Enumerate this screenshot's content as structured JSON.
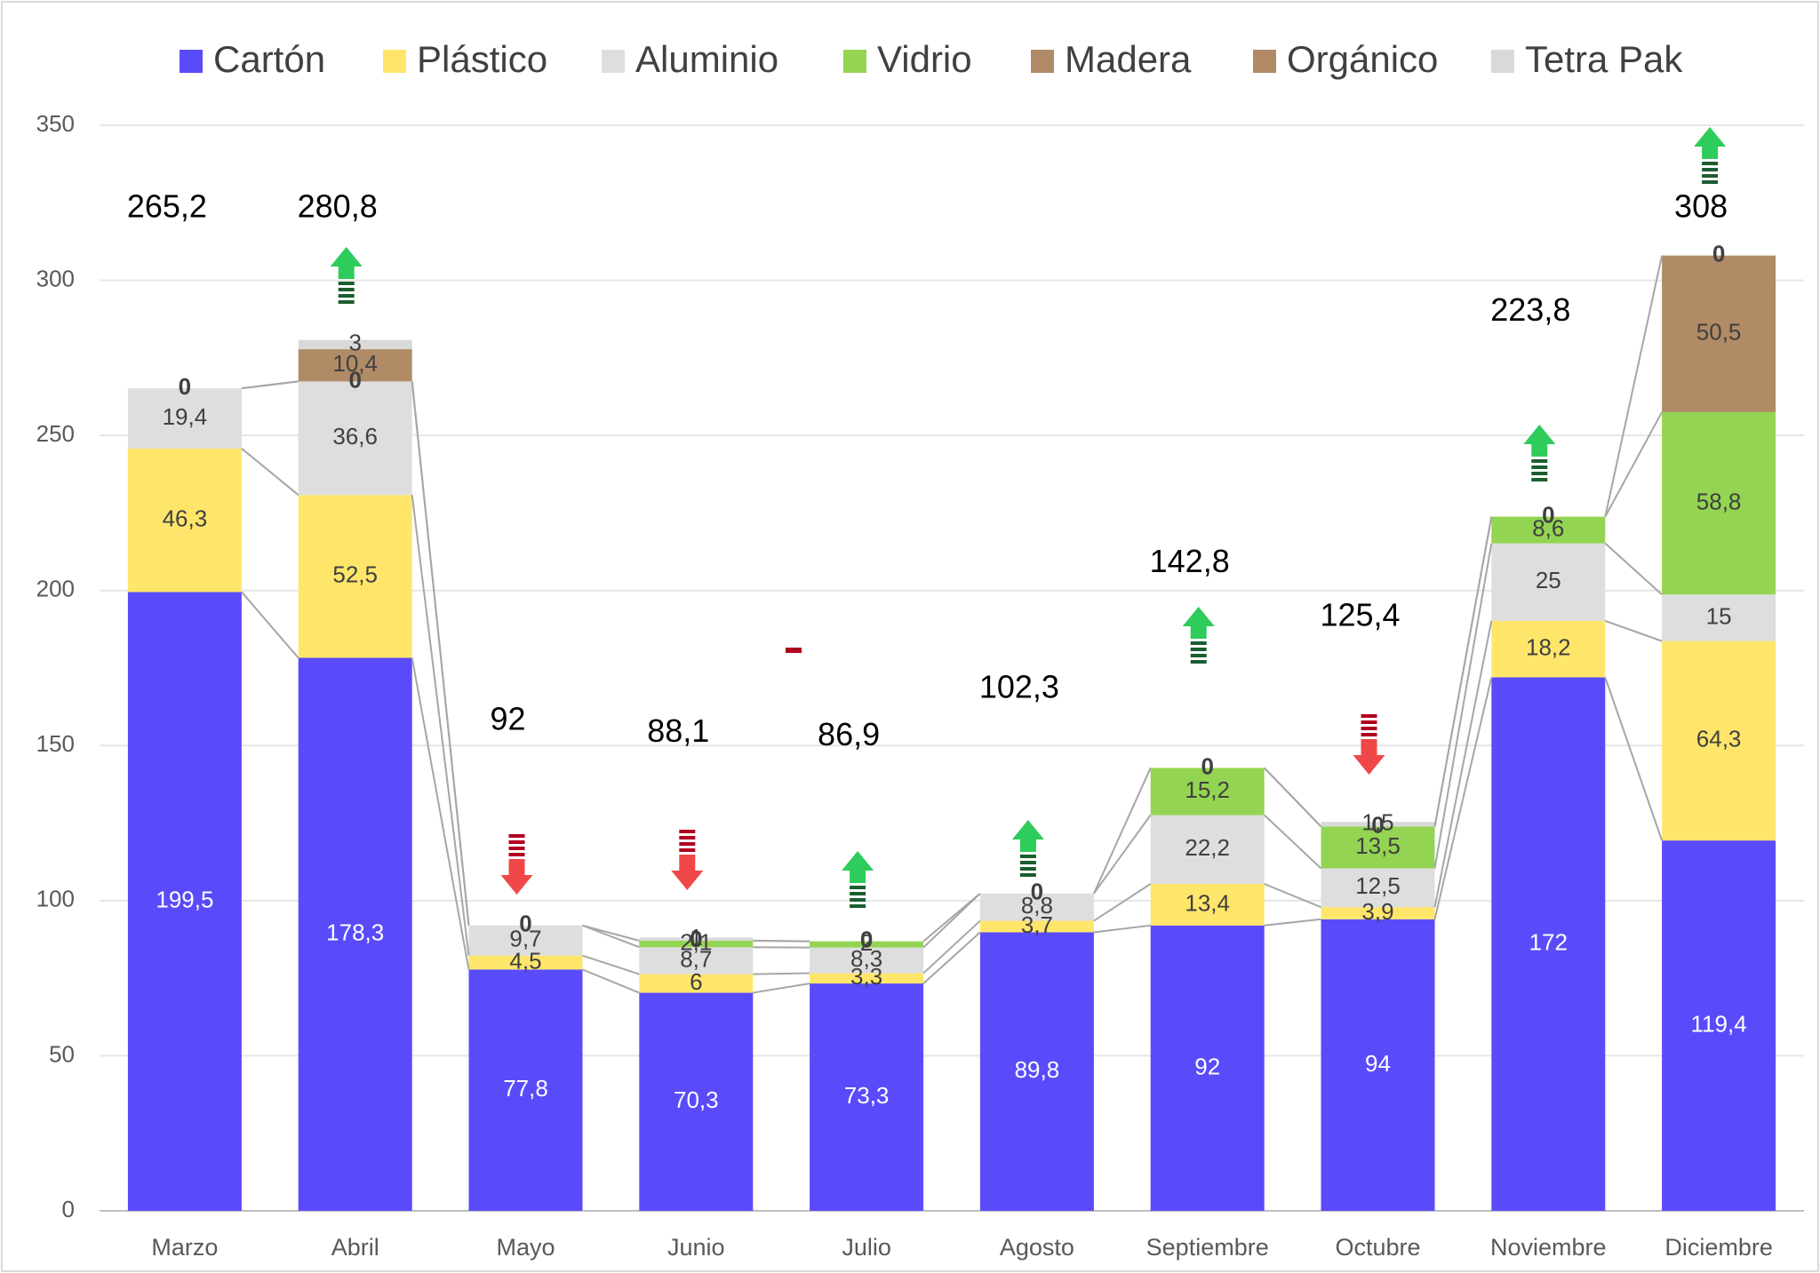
{
  "chart_data": {
    "type": "stacked_bar",
    "categories": [
      "Marzo",
      "Abril",
      "Mayo",
      "Junio",
      "Julio",
      "Agosto",
      "Septiembre",
      "Octubre",
      "Noviembre",
      "Diciembre"
    ],
    "series": [
      {
        "name": "Cartón",
        "color": "#5a4bfa",
        "values": [
          199.5,
          178.3,
          77.8,
          70.3,
          73.3,
          89.8,
          92,
          94,
          172,
          119.4
        ],
        "value_labels": [
          "199,5",
          "178,3",
          "77,8",
          "70,3",
          "73,3",
          "89,8",
          "92",
          "94",
          "172",
          "119,4"
        ]
      },
      {
        "name": "Plástico",
        "color": "#ffe66b",
        "values": [
          46.3,
          52.5,
          4.5,
          6,
          3.3,
          3.7,
          13.4,
          3.9,
          18.2,
          64.3
        ],
        "value_labels": [
          "46,3",
          "52,5",
          "4,5",
          "6",
          "3,3",
          "3,7",
          "13,4",
          "3,9",
          "18,2",
          "64,3"
        ]
      },
      {
        "name": "Aluminio",
        "color": "#dedede",
        "values": [
          19.4,
          36.6,
          9.7,
          8.7,
          8.3,
          8.8,
          22.2,
          12.5,
          25,
          15
        ],
        "value_labels": [
          "19,4",
          "36,6",
          "9,7",
          "8,7",
          "8,3",
          "8,8",
          "22,2",
          "12,5",
          "25",
          "15"
        ]
      },
      {
        "name": "Vidrio",
        "color": "#93d552",
        "values": [
          0,
          0,
          0,
          2.1,
          2,
          0,
          15.2,
          13.5,
          8.6,
          58.8
        ],
        "value_labels": [
          "0",
          "0",
          "0",
          "2,1",
          "2",
          "0",
          "15,2",
          "13,5",
          "8,6",
          "58,8"
        ]
      },
      {
        "name": "Madera",
        "color": "#b08b66",
        "values": [
          null,
          10.4,
          null,
          0,
          0,
          null,
          0,
          0,
          0,
          50.5
        ],
        "value_labels": [
          null,
          "10,4",
          null,
          "0",
          "0",
          null,
          "0",
          "0",
          "0",
          "50,5"
        ]
      },
      {
        "name": "Orgánico",
        "color": "#b08b66",
        "values": [
          null,
          null,
          null,
          null,
          null,
          null,
          null,
          null,
          null,
          null
        ]
      },
      {
        "name": "Tetra Pak",
        "color": "#d9d9d9",
        "values": [
          null,
          3,
          null,
          1,
          null,
          null,
          null,
          1.5,
          null,
          0
        ],
        "value_labels": [
          null,
          "3",
          null,
          "1",
          null,
          null,
          null,
          "1,5",
          null,
          "0"
        ]
      }
    ],
    "totals": [
      265.2,
      280.8,
      92,
      88.1,
      86.9,
      102.3,
      142.8,
      125.4,
      223.8,
      308
    ],
    "totals_labels": [
      "265,2",
      "280,8",
      "92",
      "88,1",
      "86,9",
      "102,3",
      "142,8",
      "125,4",
      "223,8",
      "308"
    ],
    "ylim": [
      0,
      350
    ],
    "yticks": [
      0,
      50,
      100,
      150,
      200,
      250,
      300,
      350
    ],
    "grid": true,
    "legend": "top"
  }
}
